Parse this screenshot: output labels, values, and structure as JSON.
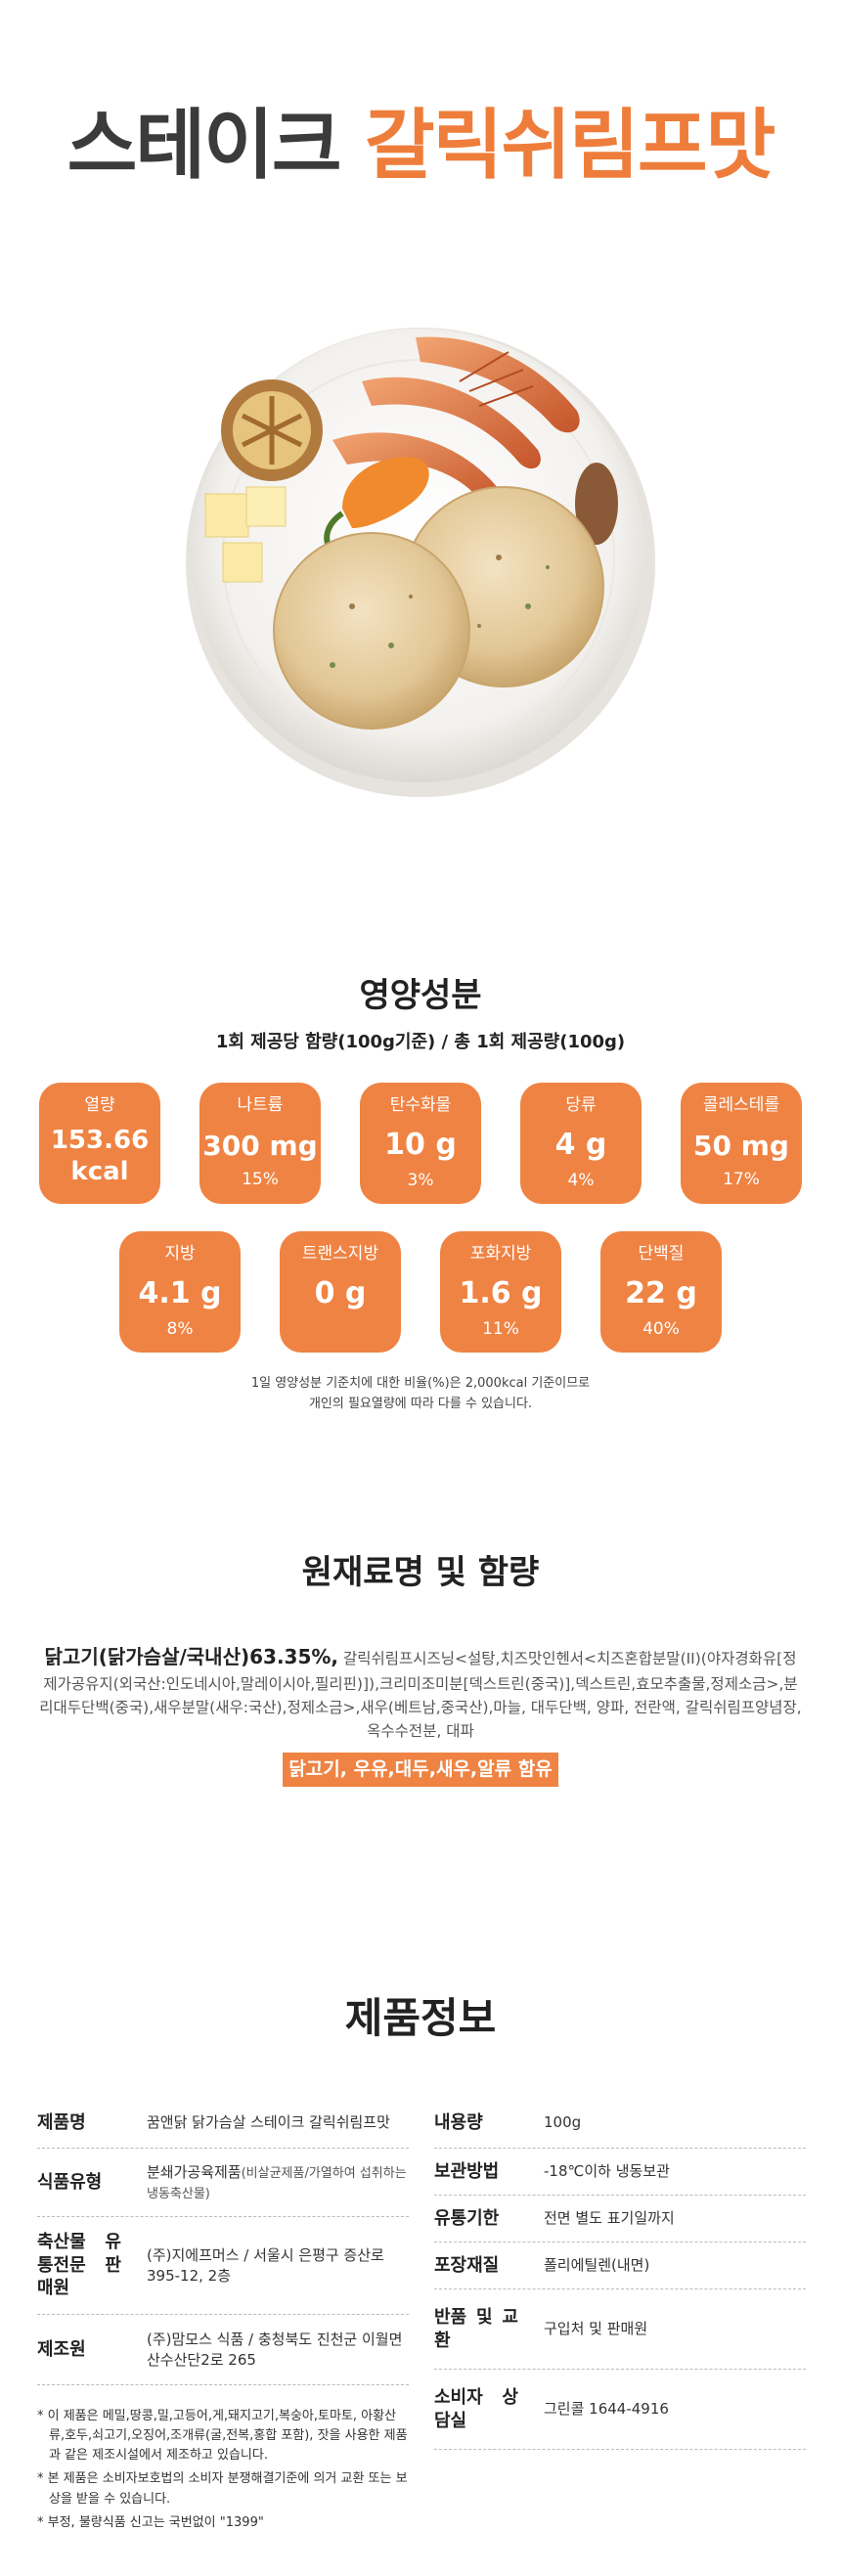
{
  "title": {
    "part1": "스테이크",
    "part2": "갈릭쉬림프맛"
  },
  "colors": {
    "accent": "#ef8343",
    "dark_text": "#3b3b3b"
  },
  "nutrition": {
    "heading": "영양성분",
    "subheading": "1회 제공당 함량(100g기준) / 총 1회 제공량(100g)",
    "row1": [
      {
        "label": "열량",
        "value": "153.66",
        "value2": "kcal",
        "pct": ""
      },
      {
        "label": "나트륨",
        "value": "300 mg",
        "value2": "",
        "pct": "15%"
      },
      {
        "label": "탄수화물",
        "value": "10 g",
        "value2": "",
        "pct": "3%"
      },
      {
        "label": "당류",
        "value": "4 g",
        "value2": "",
        "pct": "4%"
      },
      {
        "label": "콜레스테롤",
        "value": "50 mg",
        "value2": "",
        "pct": "17%"
      }
    ],
    "row2": [
      {
        "label": "지방",
        "value": "4.1 g",
        "pct": "8%"
      },
      {
        "label": "트랜스지방",
        "value": "0 g",
        "pct": ""
      },
      {
        "label": "포화지방",
        "value": "1.6 g",
        "pct": "11%"
      },
      {
        "label": "단백질",
        "value": "22 g",
        "pct": "40%"
      }
    ],
    "note_line1": "1일 영양성분 기준치에 대한 비율(%)은 2,000kcal 기준이므로",
    "note_line2": "개인의 필요열량에 따라 다를 수 있습니다."
  },
  "ingredients": {
    "heading": "원재료명 및 함량",
    "main": "닭고기(닭가슴살/국내산)63.35%,",
    "rest": " 갈릭쉬림프시즈닝<설탕,치즈맛인헨서<치즈혼합분말(II)(야자경화유[정제가공유지(외국산:인도네시아,말레이시아,필리핀)]),크리미조미분[덱스트린(중국)],덱스트린,효모추출물,정제소금>,분리대두단백(중국),새우분말(새우:국산),정제소금>,새우(베트남,중국산),마늘, 대두단백, 양파, 전란액, 갈릭쉬림프양념장, 옥수수전분, 대파",
    "allergy": "닭고기, 우유,대두,새우,알류 함유"
  },
  "product_info": {
    "heading": "제품정보",
    "left": [
      {
        "key": "제품명",
        "value": "꿈앤닭 닭가슴살 스테이크 갈릭쉬림프맛",
        "extra": ""
      },
      {
        "key": "식품유형",
        "value": "분쇄가공육제품",
        "extra": "(비살균제품/가열하여 섭취하는 냉동축산물)"
      },
      {
        "key": "축산물 유통전문 판매원",
        "value": "(주)지에프머스 / 서울시 은평구 증산로 395-12, 2층",
        "extra": ""
      },
      {
        "key": "제조원",
        "value": "(주)맘모스 식품 / 충청북도 진천군 이월면 산수산단2로 265",
        "extra": ""
      }
    ],
    "right": [
      {
        "key": "내용량",
        "value": "100g"
      },
      {
        "key": "보관방법",
        "value": "-18℃이하 냉동보관"
      },
      {
        "key": "유통기한",
        "value": "전면 별도 표기일까지"
      },
      {
        "key": "포장재질",
        "value": "폴리에틸렌(내면)"
      },
      {
        "key": "반품 및 교환",
        "value": "구입처 및 판매원"
      },
      {
        "key": "소비자 상담실",
        "value": "그린콜 1644-4916"
      }
    ],
    "notes": [
      "* 이 제품은 메밀,땅콩,밀,고등어,게,돼지고기,복숭아,토마토, 아황산류,호두,쇠고기,오징어,조개류(굴,전복,홍합 포함), 잣을 사용한 제품과 같은 제조시설에서 제조하고 있습니다.",
      "* 본 제품은 소비자보호법의 소비자 분쟁해결기준에 의거 교환 또는 보상을 받을 수 있습니다.",
      "* 부정, 불량식품 신고는 국번없이 \"1399\""
    ]
  }
}
